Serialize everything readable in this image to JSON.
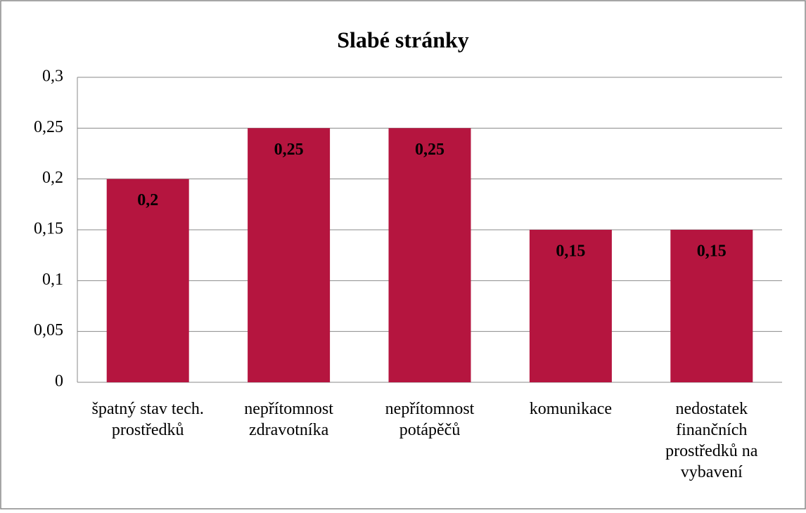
{
  "chart_data": {
    "type": "bar",
    "title": "Slabé stránky",
    "categories": [
      "špatný stav tech. prostředků",
      "nepřítomnost zdravotníka",
      "nepřítomnost potápěčů",
      "komunikace",
      "nedostatek finančních prostředků na vybavení"
    ],
    "values": [
      0.2,
      0.25,
      0.25,
      0.15,
      0.15
    ],
    "value_labels": [
      "0,2",
      "0,25",
      "0,25",
      "0,15",
      "0,15"
    ],
    "color": "#b5153f",
    "ylim": [
      0,
      0.3
    ],
    "yticks": [
      0,
      {
        "value": 0.05,
        "label": "0,05"
      },
      {
        "value": 0.1,
        "label": "0,1"
      },
      {
        "value": 0.15,
        "label": "0,15"
      },
      {
        "value": 0.2,
        "label": "0,2"
      },
      {
        "value": 0.25,
        "label": "0,25"
      },
      {
        "value": 0.3,
        "label": "0,3"
      }
    ],
    "grid": true
  }
}
